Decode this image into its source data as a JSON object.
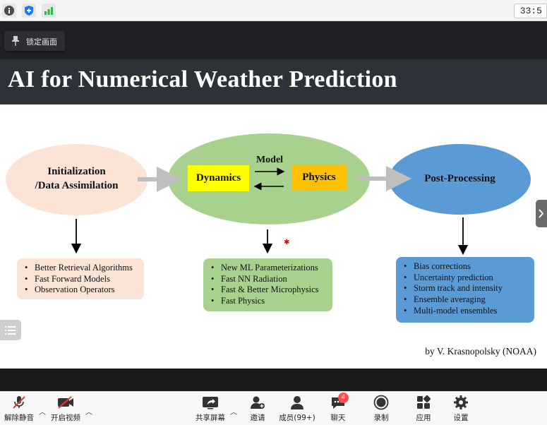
{
  "status_bar": {
    "timer": "33:5"
  },
  "lock_button": {
    "label": "锁定画面"
  },
  "slide": {
    "title": "AI for Numerical Weather Prediction",
    "initialization_line1": "Initialization",
    "initialization_line2": "/Data Assimilation",
    "dynamics": "Dynamics",
    "model": "Model",
    "physics": "Physics",
    "post_processing": "Post-Processing",
    "init_bullets": [
      "Better Retrieval Algorithms",
      "Fast Forward Models",
      "Observation Operators"
    ],
    "model_bullets": [
      "New ML Parameterizations",
      "Fast NN Radiation",
      "Fast & Better Microphysics",
      "Fast Physics"
    ],
    "post_bullets": [
      "Bias corrections",
      "Uncertainty prediction",
      "Storm track and intensity",
      "Ensemble averaging",
      "Multi-model ensembles"
    ],
    "credit": "by V. Krasnopolsky (NOAA)",
    "colors": {
      "init": "#fbe3d6",
      "model": "#a9d18e",
      "post": "#5b9bd5",
      "dynamics": "#ffff00",
      "physics": "#ffc000",
      "title_bar": "#2d3138"
    }
  },
  "toolbar": {
    "unmute": "解除静音",
    "start_video": "开启视频",
    "share_screen": "共享屏幕",
    "invite": "邀请",
    "members": "成员(99+)",
    "chat": "聊天",
    "chat_badge": "4",
    "record": "录制",
    "apps": "应用",
    "settings": "设置"
  }
}
